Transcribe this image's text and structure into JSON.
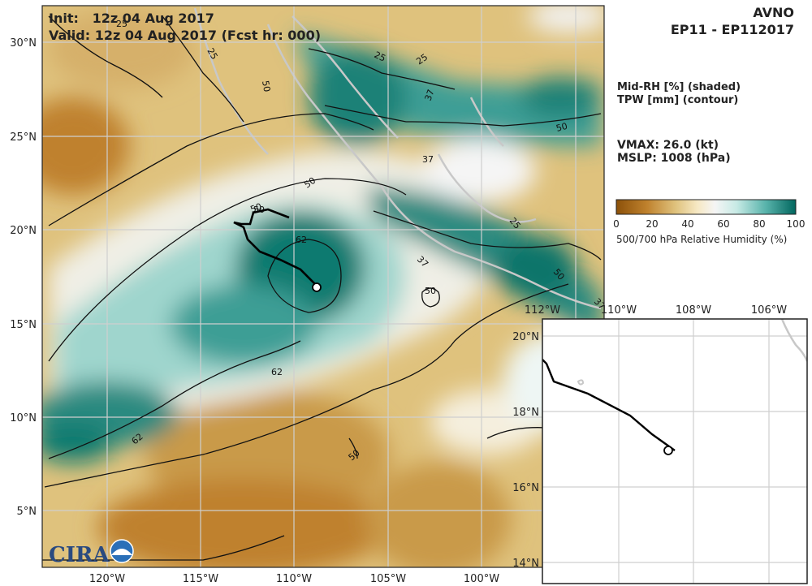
{
  "header": {
    "init_line": "Init:   12z 04 Aug 2017",
    "valid_line": "Valid: 12z 04 Aug 2017 (Fcst hr: 000)",
    "model": "AVNO",
    "storm_id": "EP11 - EP112017"
  },
  "fields": {
    "shaded": "Mid-RH [%] (shaded)",
    "contour": "TPW [mm] (contour)"
  },
  "storm": {
    "vmax": "VMAX:  26.0 (kt)",
    "mslp": "MSLP: 1008 (hPa)"
  },
  "colorbar": {
    "ticks": [
      "0",
      "20",
      "40",
      "60",
      "80",
      "100"
    ],
    "label": "500/700 hPa Relative Humidity (%)",
    "colors": [
      "#8c510a",
      "#d8b365",
      "#f6e8c3",
      "#f5f5f5",
      "#c7eae5",
      "#5ab4ac",
      "#01665e"
    ]
  },
  "main_map": {
    "lat_labels": [
      "30°N",
      "25°N",
      "20°N",
      "15°N",
      "10°N",
      "5°N"
    ],
    "lon_labels": [
      "120°W",
      "115°W",
      "110°W",
      "105°W",
      "100°W"
    ],
    "contour_labels": [
      "25",
      "25",
      "25",
      "25",
      "50",
      "50",
      "50",
      "50",
      "50",
      "50",
      "37",
      "37",
      "37",
      "62",
      "62",
      "62",
      "50",
      "25",
      "50",
      "37"
    ]
  },
  "inset_map": {
    "lat_labels": [
      "20°N",
      "18°N",
      "16°N",
      "14°N"
    ],
    "lon_labels": [
      "112°W",
      "110°W",
      "108°W",
      "106°W"
    ]
  },
  "logo": {
    "text": "CIRA"
  }
}
